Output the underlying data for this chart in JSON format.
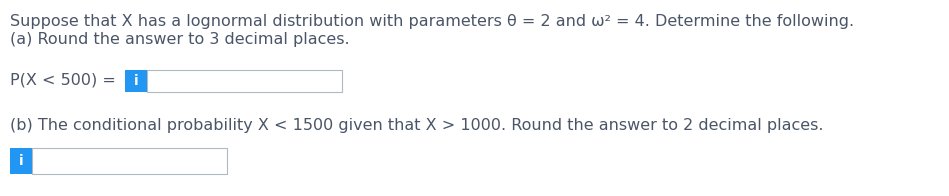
{
  "bg_color": "#ffffff",
  "text_color": "#4a5568",
  "line1": "Suppose that X has a lognormal distribution with parameters θ = 2 and ω² = 4. Determine the following.",
  "line2": "(a) Round the answer to 3 decimal places.",
  "line3_label": "P(X < 500) =",
  "line4": "(b) The conditional probability X < 1500 given that X > 1000. Round the answer to 2 decimal places.",
  "input_box_color": "#ffffff",
  "input_box_border": "#b0b8c0",
  "icon_bg_color": "#2196f3",
  "icon_text": "i",
  "icon_text_color": "#ffffff",
  "font_size": 11.5,
  "icon_font_size": 10,
  "fig_width": 9.49,
  "fig_height": 1.96,
  "dpi": 100
}
